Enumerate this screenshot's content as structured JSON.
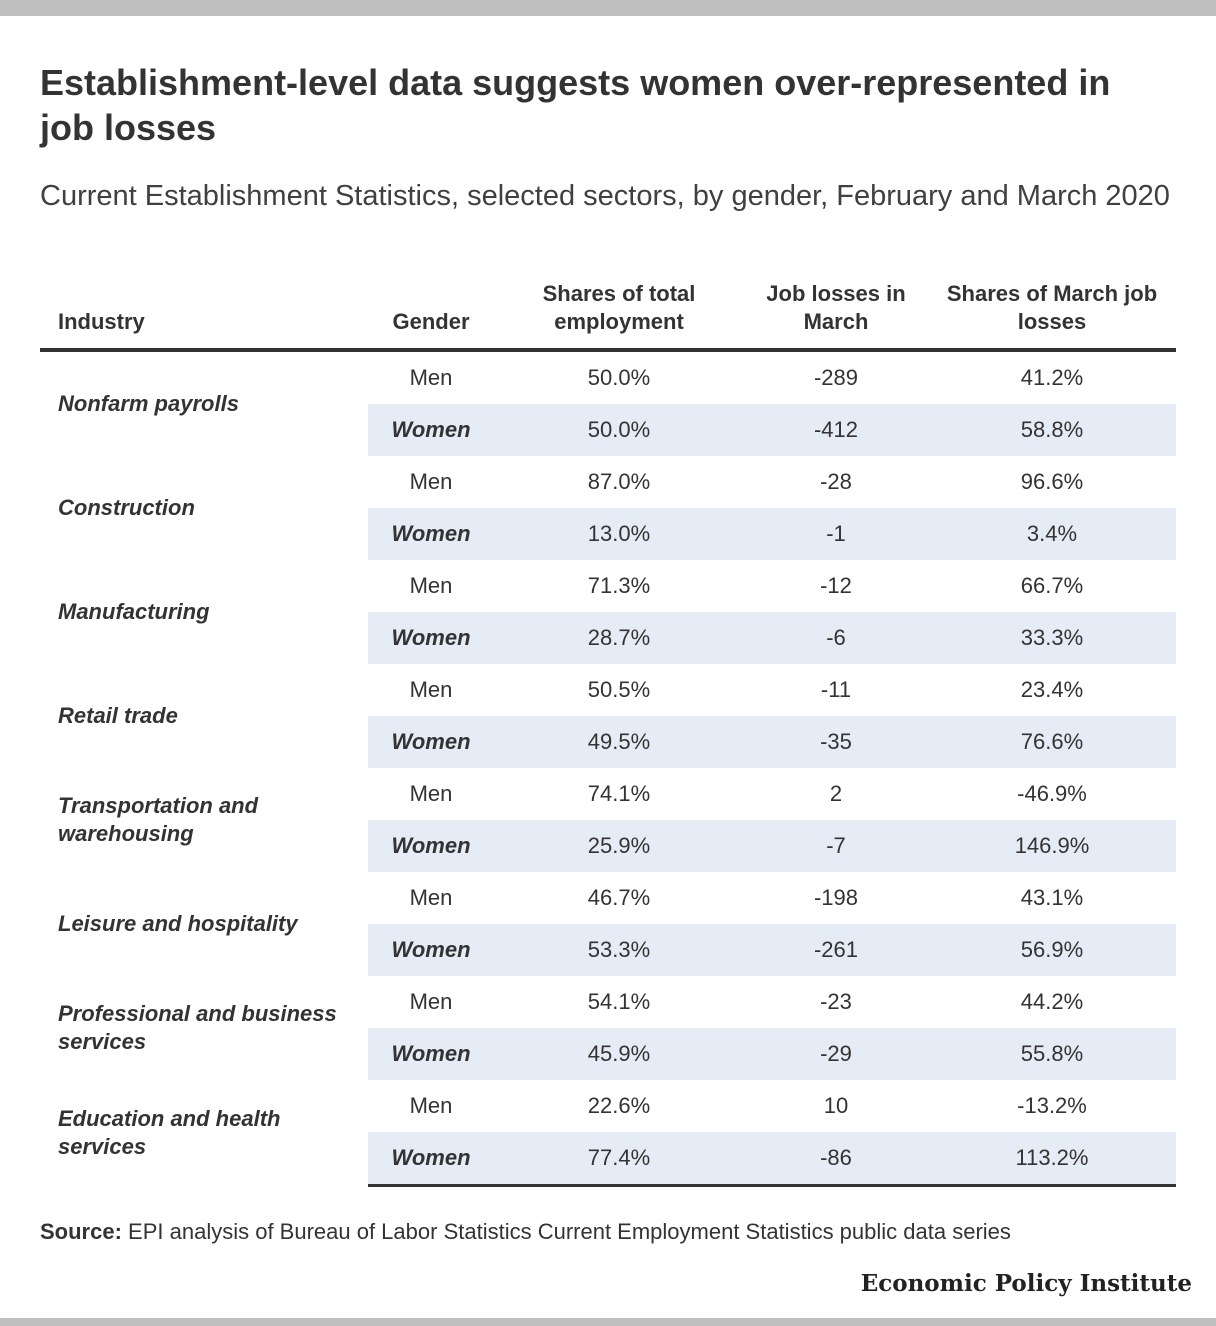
{
  "title": "Establishment-level data suggests women over-represented in job losses",
  "subtitle": "Current Establishment Statistics, selected sectors, by gender, February and March 2020",
  "source_label": "Source:",
  "source_text": "EPI analysis of Bureau of Labor Statistics Current Employment Statistics public data series",
  "organization": "Economic Policy Institute",
  "colors": {
    "women_row_bg": "#e6ecf5",
    "rule": "#333333",
    "frame": "#bfbfbf"
  },
  "chart_data": {
    "type": "table",
    "title": "Establishment-level data suggests women over-represented in job losses",
    "columns": [
      "Industry",
      "Gender",
      "Shares of total employment",
      "Job losses in March",
      "Shares of March job losses"
    ],
    "groups": [
      {
        "industry": "Nonfarm payrolls",
        "rows": [
          {
            "gender": "Men",
            "share_employment": "50.0%",
            "job_losses": "-289",
            "share_losses": "41.2%"
          },
          {
            "gender": "Women",
            "share_employment": "50.0%",
            "job_losses": "-412",
            "share_losses": "58.8%"
          }
        ]
      },
      {
        "industry": "Construction",
        "rows": [
          {
            "gender": "Men",
            "share_employment": "87.0%",
            "job_losses": "-28",
            "share_losses": "96.6%"
          },
          {
            "gender": "Women",
            "share_employment": "13.0%",
            "job_losses": "-1",
            "share_losses": "3.4%"
          }
        ]
      },
      {
        "industry": "Manufacturing",
        "rows": [
          {
            "gender": "Men",
            "share_employment": "71.3%",
            "job_losses": "-12",
            "share_losses": "66.7%"
          },
          {
            "gender": "Women",
            "share_employment": "28.7%",
            "job_losses": "-6",
            "share_losses": "33.3%"
          }
        ]
      },
      {
        "industry": "Retail trade",
        "rows": [
          {
            "gender": "Men",
            "share_employment": "50.5%",
            "job_losses": "-11",
            "share_losses": "23.4%"
          },
          {
            "gender": "Women",
            "share_employment": "49.5%",
            "job_losses": "-35",
            "share_losses": "76.6%"
          }
        ]
      },
      {
        "industry": "Transportation and warehousing",
        "rows": [
          {
            "gender": "Men",
            "share_employment": "74.1%",
            "job_losses": "2",
            "share_losses": "-46.9%"
          },
          {
            "gender": "Women",
            "share_employment": "25.9%",
            "job_losses": "-7",
            "share_losses": "146.9%"
          }
        ]
      },
      {
        "industry": "Leisure and hospitality",
        "rows": [
          {
            "gender": "Men",
            "share_employment": "46.7%",
            "job_losses": "-198",
            "share_losses": "43.1%"
          },
          {
            "gender": "Women",
            "share_employment": "53.3%",
            "job_losses": "-261",
            "share_losses": "56.9%"
          }
        ]
      },
      {
        "industry": "Professional and business services",
        "rows": [
          {
            "gender": "Men",
            "share_employment": "54.1%",
            "job_losses": "-23",
            "share_losses": "44.2%"
          },
          {
            "gender": "Women",
            "share_employment": "45.9%",
            "job_losses": "-29",
            "share_losses": "55.8%"
          }
        ]
      },
      {
        "industry": "Education and health services",
        "rows": [
          {
            "gender": "Men",
            "share_employment": "22.6%",
            "job_losses": "10",
            "share_losses": "-13.2%"
          },
          {
            "gender": "Women",
            "share_employment": "77.4%",
            "job_losses": "-86",
            "share_losses": "113.2%"
          }
        ]
      }
    ]
  }
}
